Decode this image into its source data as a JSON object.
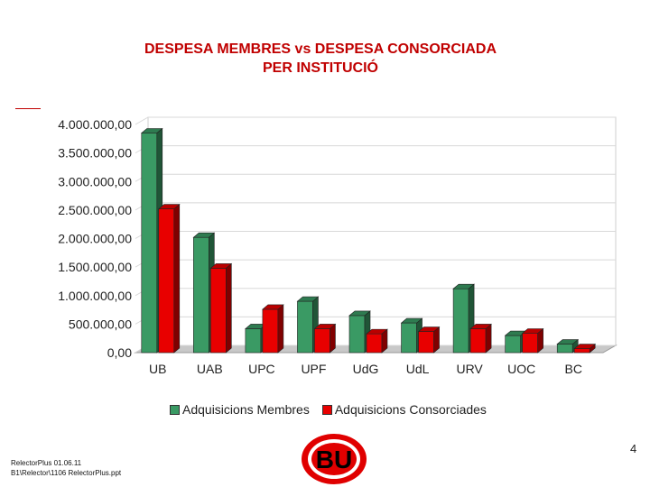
{
  "page_title_line1": "DESPESA MEMBRES vs DESPESA CONSORCIADA",
  "page_title_line2": "PER INSTITUCIÓ",
  "page_number": "4",
  "footer_line1": "RelectorPlus 01.06.11",
  "footer_line2": "B1\\Relector\\1106 RelectorPlus.ppt",
  "logo_text": "BU",
  "colors": {
    "series1": "#3a9a64",
    "series2": "#e80000",
    "title": "#c00000"
  },
  "chart_data": {
    "type": "bar",
    "categories": [
      "UB",
      "UAB",
      "UPC",
      "UPF",
      "UdG",
      "UdL",
      "URV",
      "UOC",
      "BC"
    ],
    "series": [
      {
        "name": "Adquisicions Membres",
        "values": [
          3850000,
          2020000,
          420000,
          900000,
          650000,
          520000,
          1120000,
          300000,
          150000
        ]
      },
      {
        "name": "Adquisicions Consorciades",
        "values": [
          2520000,
          1480000,
          760000,
          420000,
          330000,
          370000,
          420000,
          340000,
          70000
        ]
      }
    ],
    "yticks": [
      "0,00",
      "500.000,00",
      "1.000.000,00",
      "1.500.000,00",
      "2.000.000,00",
      "2.500.000,00",
      "3.000.000,00",
      "3.500.000,00",
      "4.000.000,00"
    ],
    "ylim": [
      0,
      4000000
    ],
    "grid": true,
    "legend_position": "bottom"
  }
}
